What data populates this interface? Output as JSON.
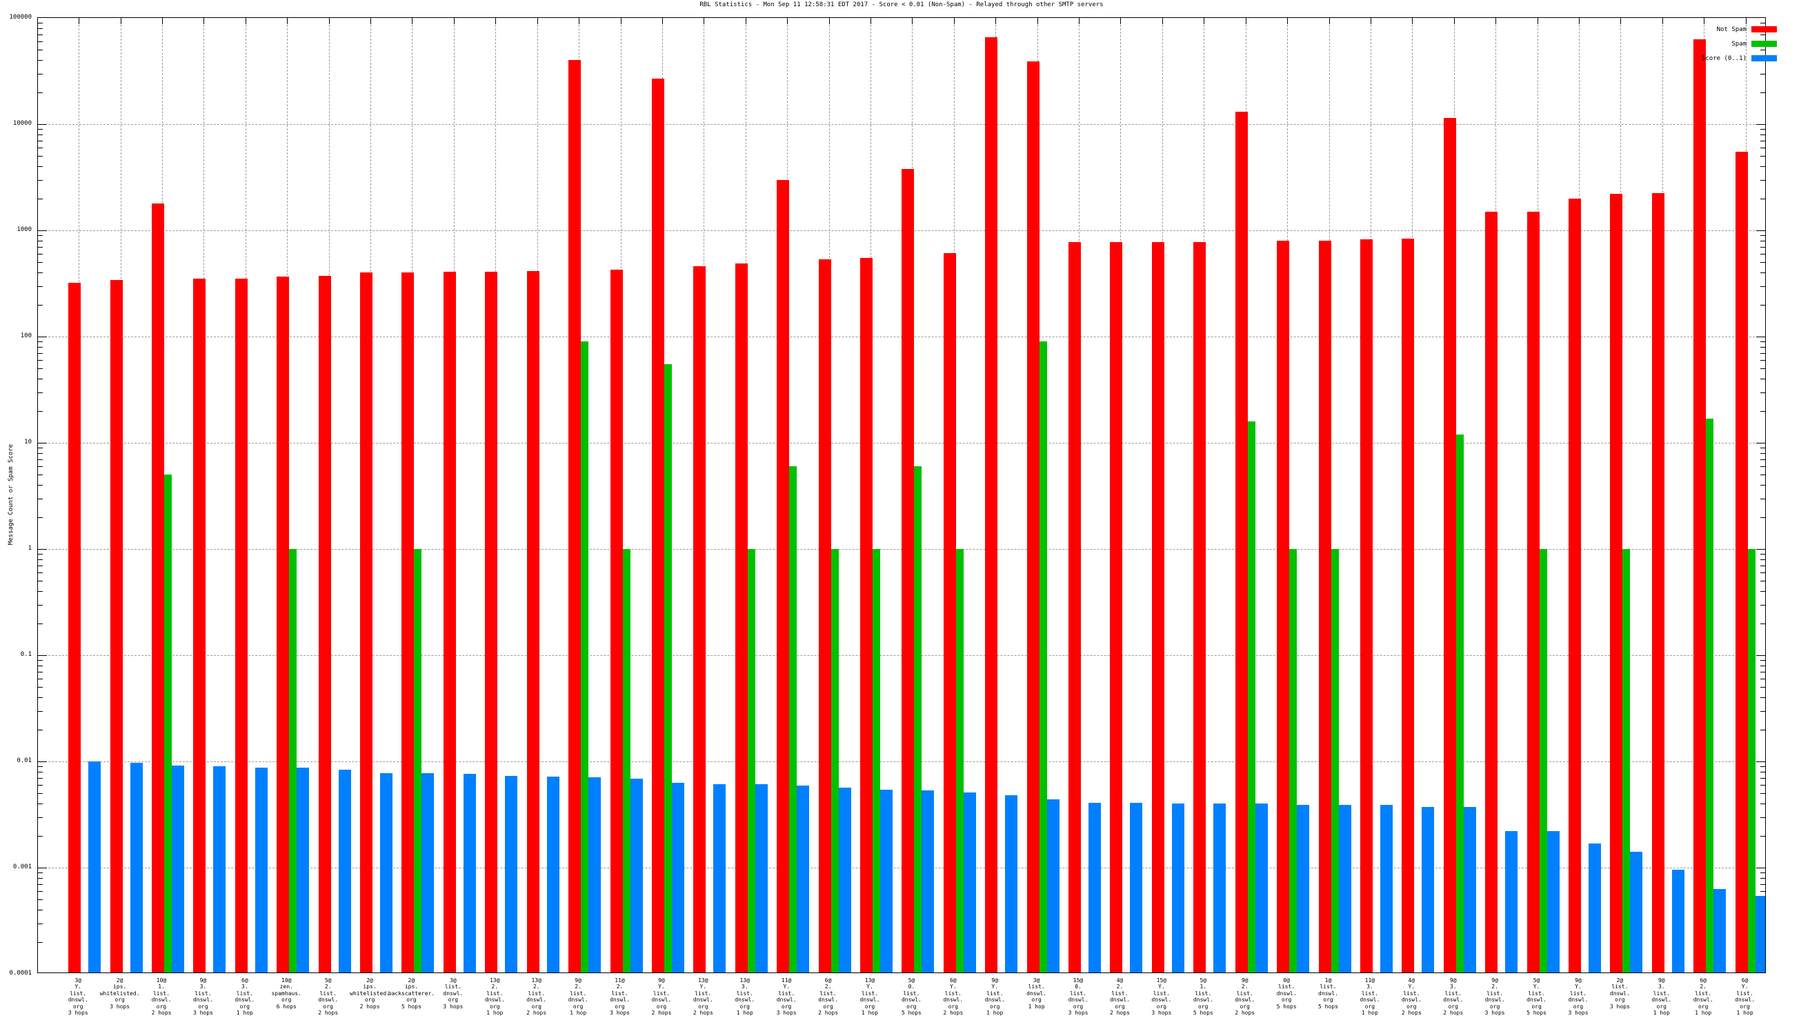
{
  "title": "RBL Statistics - Mon Sep 11 12:58:31 EDT 2017 - Score < 0.01 (Non-Spam) - Relayed through other SMTP servers",
  "y_axis": {
    "label": "Message Count or Spam Score",
    "tick_labels": [
      "100000",
      "10000",
      "1000",
      "100",
      "10",
      "1",
      "0.1",
      "0.01",
      "0.001",
      "0.0001"
    ]
  },
  "legend": {
    "position": "top-right",
    "items": [
      {
        "label": "Not Spam",
        "color": "#ff0000",
        "series": "not_spam"
      },
      {
        "label": "Spam",
        "color": "#00c000",
        "series": "spam"
      },
      {
        "label": "Score (0..1)",
        "color": "#0080ff",
        "series": "score"
      }
    ]
  },
  "colors": {
    "not_spam": "#ff0000",
    "spam": "#00c000",
    "score": "#0080ff",
    "grid": "#9a9a9a",
    "axis": "#000000",
    "background": "#ffffff"
  },
  "chart_data": {
    "type": "bar",
    "log_scale_y": true,
    "ylim": [
      0.0001,
      100000
    ],
    "grid": "dashed horizontal lines at each decade, dashed vertical line at each category",
    "title": "RBL Statistics - Mon Sep 11 12:58:31 EDT 2017 - Score < 0.01 (Non-Spam) - Relayed through other SMTP servers",
    "ylabel": "Message Count or Spam Score",
    "legend_position": "top-right",
    "categories": [
      {
        "lines": [
          "3@",
          "Y.",
          "list.",
          "dnswl.",
          "org"
        ],
        "hops": "3 hops"
      },
      {
        "lines": [
          "2@",
          "ips.",
          "whitelisted.",
          "org"
        ],
        "hops": "3 hops"
      },
      {
        "lines": [
          "10@",
          "1.",
          "list.",
          "dnswl.",
          "org"
        ],
        "hops": "2 hops"
      },
      {
        "lines": [
          "9@",
          "3.",
          "list.",
          "dnswl.",
          "org"
        ],
        "hops": "3 hops"
      },
      {
        "lines": [
          "6@",
          "3.",
          "list.",
          "dnswl.",
          "org"
        ],
        "hops": "1 hop"
      },
      {
        "lines": [
          "10@",
          "zen.",
          "spamhaus.",
          "org"
        ],
        "hops": "6 hops"
      },
      {
        "lines": [
          "5@",
          "2.",
          "list.",
          "dnswl.",
          "org"
        ],
        "hops": "2 hops"
      },
      {
        "lines": [
          "2@",
          "ips.",
          "whitelisted.",
          "org"
        ],
        "hops": "2 hops"
      },
      {
        "lines": [
          "2@",
          "ips.",
          "backscatterer.",
          "org"
        ],
        "hops": "5 hops"
      },
      {
        "lines": [
          "3@",
          "list.",
          "dnswl.",
          "org"
        ],
        "hops": "3 hops"
      },
      {
        "lines": [
          "13@",
          "2.",
          "list.",
          "dnswl.",
          "org"
        ],
        "hops": "1 hop"
      },
      {
        "lines": [
          "13@",
          "2.",
          "list.",
          "dnswl.",
          "org"
        ],
        "hops": "2 hops"
      },
      {
        "lines": [
          "9@",
          "2.",
          "list.",
          "dnswl.",
          "org"
        ],
        "hops": "1 hop"
      },
      {
        "lines": [
          "11@",
          "2.",
          "list.",
          "dnswl.",
          "org"
        ],
        "hops": "3 hops"
      },
      {
        "lines": [
          "9@",
          "Y.",
          "list.",
          "dnswl.",
          "org"
        ],
        "hops": "2 hops"
      },
      {
        "lines": [
          "13@",
          "Y.",
          "list.",
          "dnswl.",
          "org"
        ],
        "hops": "2 hops"
      },
      {
        "lines": [
          "13@",
          "3.",
          "list.",
          "dnswl.",
          "org"
        ],
        "hops": "1 hop"
      },
      {
        "lines": [
          "11@",
          "Y.",
          "list.",
          "dnswl.",
          "org"
        ],
        "hops": "3 hops"
      },
      {
        "lines": [
          "6@",
          "2.",
          "list.",
          "dnswl.",
          "org"
        ],
        "hops": "2 hops"
      },
      {
        "lines": [
          "13@",
          "Y.",
          "list.",
          "dnswl.",
          "org"
        ],
        "hops": "1 hop"
      },
      {
        "lines": [
          "5@",
          "0.",
          "list.",
          "dnswl.",
          "org"
        ],
        "hops": "5 hops"
      },
      {
        "lines": [
          "6@",
          "Y.",
          "list.",
          "dnswl.",
          "org"
        ],
        "hops": "2 hops"
      },
      {
        "lines": [
          "9@",
          "Y.",
          "list.",
          "dnswl.",
          "org"
        ],
        "hops": "1 hop"
      },
      {
        "lines": [
          "3@",
          "list.",
          "dnswl.",
          "org"
        ],
        "hops": "1 hop"
      },
      {
        "lines": [
          "15@",
          "0.",
          "list.",
          "dnswl.",
          "org"
        ],
        "hops": "3 hops"
      },
      {
        "lines": [
          "4@",
          "2.",
          "list.",
          "dnswl.",
          "org"
        ],
        "hops": "2 hops"
      },
      {
        "lines": [
          "15@",
          "Y.",
          "list.",
          "dnswl.",
          "org"
        ],
        "hops": "3 hops"
      },
      {
        "lines": [
          "5@",
          "1.",
          "list.",
          "dnswl.",
          "org"
        ],
        "hops": "5 hops"
      },
      {
        "lines": [
          "9@",
          "2.",
          "list.",
          "dnswl.",
          "org"
        ],
        "hops": "2 hops"
      },
      {
        "lines": [
          "0@",
          "list.",
          "dnswl.",
          "org"
        ],
        "hops": "5 hops"
      },
      {
        "lines": [
          "1@",
          "list.",
          "dnswl.",
          "org"
        ],
        "hops": "5 hops"
      },
      {
        "lines": [
          "11@",
          "3.",
          "list.",
          "dnswl.",
          "org"
        ],
        "hops": "1 hop"
      },
      {
        "lines": [
          "4@",
          "Y.",
          "list.",
          "dnswl.",
          "org"
        ],
        "hops": "2 hops"
      },
      {
        "lines": [
          "9@",
          "3.",
          "list.",
          "dnswl.",
          "org"
        ],
        "hops": "2 hops"
      },
      {
        "lines": [
          "9@",
          "2.",
          "list.",
          "dnswl.",
          "org"
        ],
        "hops": "3 hops"
      },
      {
        "lines": [
          "5@",
          "Y.",
          "list.",
          "dnswl.",
          "org"
        ],
        "hops": "5 hops"
      },
      {
        "lines": [
          "9@",
          "Y.",
          "list.",
          "dnswl.",
          "org"
        ],
        "hops": "3 hops"
      },
      {
        "lines": [
          "2@",
          "list.",
          "dnswl.",
          "org"
        ],
        "hops": "3 hops"
      },
      {
        "lines": [
          "9@",
          "3.",
          "list.",
          "dnswl.",
          "org"
        ],
        "hops": "1 hop"
      },
      {
        "lines": [
          "6@",
          "2.",
          "list.",
          "dnswl.",
          "org"
        ],
        "hops": "1 hop"
      },
      {
        "lines": [
          "6@",
          "Y.",
          "list.",
          "dnswl.",
          "org"
        ],
        "hops": "1 hop"
      }
    ],
    "series": [
      {
        "name": "Not Spam",
        "color": "#ff0000",
        "values": [
          320,
          340,
          1800,
          350,
          350,
          365,
          370,
          400,
          400,
          410,
          410,
          415,
          40000,
          425,
          27000,
          460,
          490,
          3000,
          530,
          550,
          3800,
          610,
          66000,
          39000,
          780,
          780,
          780,
          780,
          13000,
          800,
          800,
          820,
          840,
          11500,
          1500,
          1500,
          2000,
          2200,
          2250,
          63000,
          5500
        ]
      },
      {
        "name": "Spam",
        "color": "#00c000",
        "values": [
          0,
          0,
          5,
          0,
          0,
          1,
          0,
          0,
          1,
          0,
          0,
          0,
          90,
          1,
          55,
          0,
          1,
          6,
          1,
          1,
          6,
          1,
          0,
          90,
          0,
          0,
          0,
          0,
          16,
          1,
          1,
          0,
          0,
          12,
          0,
          1,
          0,
          1,
          0,
          17,
          1
        ]
      },
      {
        "name": "Score (0..1)",
        "color": "#0080ff",
        "values": [
          0.01,
          0.0097,
          0.0092,
          0.009,
          0.0088,
          0.0087,
          0.0084,
          0.0078,
          0.0077,
          0.0076,
          0.0073,
          0.0072,
          0.0071,
          0.0069,
          0.0063,
          0.0061,
          0.0061,
          0.0059,
          0.0057,
          0.0054,
          0.0053,
          0.0051,
          0.0048,
          0.0044,
          0.0041,
          0.0041,
          0.004,
          0.004,
          0.004,
          0.0039,
          0.0039,
          0.0039,
          0.0037,
          0.0037,
          0.0022,
          0.0022,
          0.0017,
          0.0014,
          0.00096,
          0.00063,
          0.00054
        ]
      }
    ]
  }
}
